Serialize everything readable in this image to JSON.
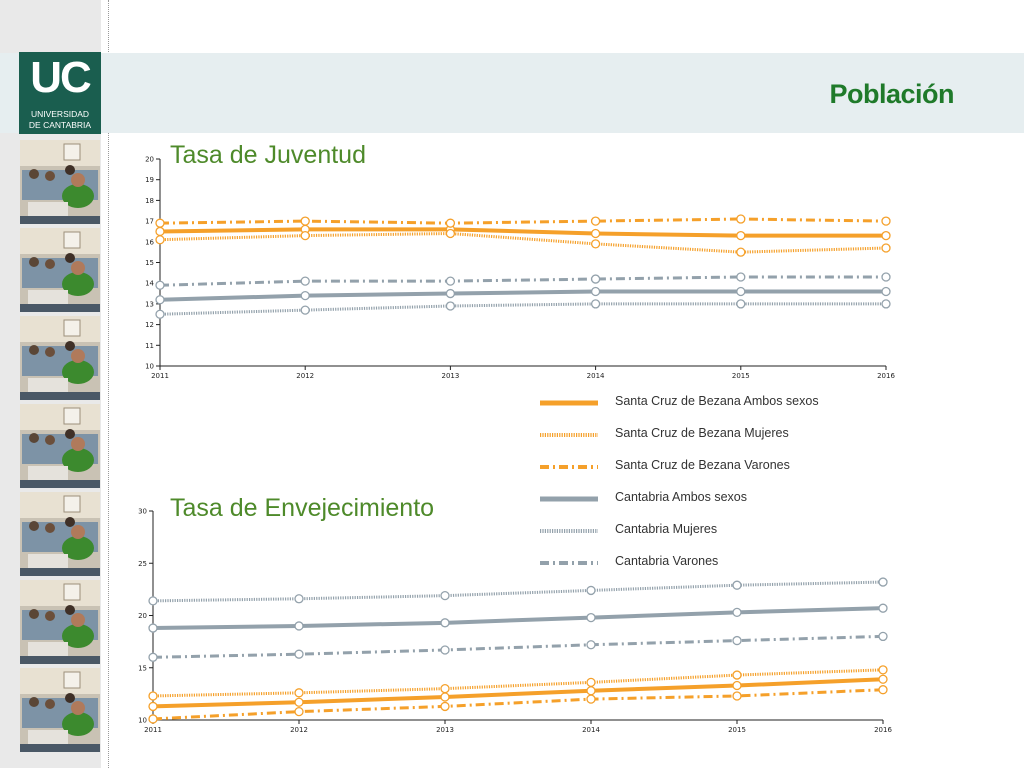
{
  "header": {
    "title": "Población",
    "logo": {
      "text": "UC",
      "line1": "UNIVERSIDAD",
      "line2": "DE CANTABRIA"
    }
  },
  "colors": {
    "orange": "#f5a02a",
    "gray": "#93a1ab",
    "title_green": "#1f7a2a",
    "chart_title_green": "#4e8a2a",
    "logo_bg": "#1a5e4f"
  },
  "legend": [
    {
      "label": "Santa Cruz de Bezana Ambos sexos",
      "color": "#f5a02a",
      "style": "solid"
    },
    {
      "label": "Santa Cruz de Bezana Mujeres",
      "color": "#f5a02a",
      "style": "hatched"
    },
    {
      "label": "Santa Cruz de Bezana Varones",
      "color": "#f5a02a",
      "style": "dashdot"
    },
    {
      "label": "Cantabria Ambos sexos",
      "color": "#93a1ab",
      "style": "solid"
    },
    {
      "label": "Cantabria Mujeres",
      "color": "#93a1ab",
      "style": "hatched"
    },
    {
      "label": "Cantabria Varones",
      "color": "#93a1ab",
      "style": "dashdot"
    }
  ],
  "chart_data": [
    {
      "type": "line",
      "title": "Tasa de Juventud",
      "x": [
        "2011",
        "2012",
        "2013",
        "2014",
        "2015",
        "2016"
      ],
      "ylim": [
        10,
        20
      ],
      "yticks": [
        10,
        11,
        12,
        13,
        14,
        15,
        16,
        17,
        18,
        19,
        20
      ],
      "series": [
        {
          "name": "Santa Cruz de Bezana Ambos sexos",
          "values": [
            16.5,
            16.6,
            16.6,
            16.4,
            16.3,
            16.3
          ]
        },
        {
          "name": "Santa Cruz de Bezana Mujeres",
          "values": [
            16.1,
            16.3,
            16.4,
            15.9,
            15.5,
            15.7
          ]
        },
        {
          "name": "Santa Cruz de Bezana Varones",
          "values": [
            16.9,
            17.0,
            16.9,
            17.0,
            17.1,
            17.0
          ]
        },
        {
          "name": "Cantabria Ambos sexos",
          "values": [
            13.2,
            13.4,
            13.5,
            13.6,
            13.6,
            13.6
          ]
        },
        {
          "name": "Cantabria Mujeres",
          "values": [
            12.5,
            12.7,
            12.9,
            13.0,
            13.0,
            13.0
          ]
        },
        {
          "name": "Cantabria Varones",
          "values": [
            13.9,
            14.1,
            14.1,
            14.2,
            14.3,
            14.3
          ]
        }
      ]
    },
    {
      "type": "line",
      "title": "Tasa de Envejecimiento",
      "x": [
        "2011",
        "2012",
        "2013",
        "2014",
        "2015",
        "2016"
      ],
      "ylim": [
        10,
        30
      ],
      "yticks": [
        10,
        15,
        20,
        25,
        30
      ],
      "series": [
        {
          "name": "Santa Cruz de Bezana Ambos sexos",
          "values": [
            11.3,
            11.7,
            12.2,
            12.8,
            13.3,
            13.9
          ]
        },
        {
          "name": "Santa Cruz de Bezana Mujeres",
          "values": [
            12.3,
            12.6,
            13.0,
            13.6,
            14.3,
            14.8
          ]
        },
        {
          "name": "Santa Cruz de Bezana Varones",
          "values": [
            10.1,
            10.8,
            11.3,
            12.0,
            12.3,
            12.9
          ]
        },
        {
          "name": "Cantabria Ambos sexos",
          "values": [
            18.8,
            19.0,
            19.3,
            19.8,
            20.3,
            20.7
          ]
        },
        {
          "name": "Cantabria Mujeres",
          "values": [
            21.4,
            21.6,
            21.9,
            22.4,
            22.9,
            23.2
          ]
        },
        {
          "name": "Cantabria Varones",
          "values": [
            16.0,
            16.3,
            16.7,
            17.2,
            17.6,
            18.0
          ]
        }
      ]
    }
  ]
}
